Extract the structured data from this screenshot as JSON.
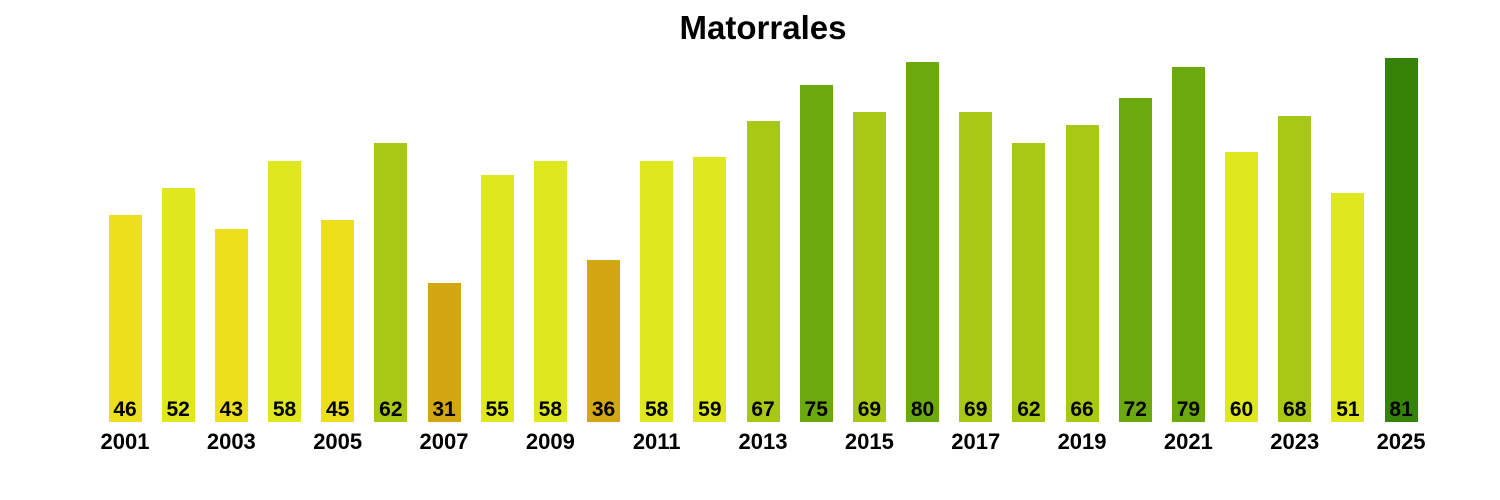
{
  "chart_data": {
    "type": "bar",
    "title": "Matorrales",
    "x": [
      2001,
      2002,
      2003,
      2004,
      2005,
      2006,
      2007,
      2008,
      2009,
      2010,
      2011,
      2012,
      2013,
      2014,
      2015,
      2016,
      2017,
      2018,
      2019,
      2020,
      2021,
      2022,
      2023,
      2024,
      2025
    ],
    "values": [
      46,
      52,
      43,
      58,
      45,
      62,
      31,
      55,
      58,
      36,
      58,
      59,
      67,
      75,
      69,
      80,
      69,
      62,
      66,
      72,
      79,
      60,
      68,
      51,
      81
    ],
    "bar_colors": [
      "#EDDF1C",
      "#DFE81E",
      "#EDDF1C",
      "#DFE81E",
      "#EDDF1C",
      "#A7C814",
      "#D2A713",
      "#DFE81E",
      "#DFE81E",
      "#D2A713",
      "#DFE81E",
      "#DFE81E",
      "#A7C814",
      "#6CA90F",
      "#A7C814",
      "#6CA90F",
      "#A7C814",
      "#A7C814",
      "#A7C814",
      "#6CA90F",
      "#6CA90F",
      "#DFE81E",
      "#A7C814",
      "#DFE81E",
      "#348307"
    ],
    "x_tick_labels": [
      "2001",
      "2003",
      "2005",
      "2007",
      "2009",
      "2011",
      "2013",
      "2015",
      "2017",
      "2019",
      "2021",
      "2023",
      "2025"
    ],
    "x_tick_every": 2,
    "value_labels_shown": true,
    "value_label_position": "inside-base",
    "xlabel": "",
    "ylabel": "",
    "ylim": [
      0,
      84
    ],
    "grid": false,
    "legend": null,
    "axes_visible": false,
    "background_color": "#FFFFFF",
    "text_color": "#000000",
    "color_bins": [
      {
        "range": "30-40",
        "color": "#D2A713"
      },
      {
        "range": "41-50",
        "color": "#EDDF1C"
      },
      {
        "range": "51-60",
        "color": "#DFE81E"
      },
      {
        "range": "61-70",
        "color": "#A7C814"
      },
      {
        "range": "71-80",
        "color": "#6CA90F"
      },
      {
        "range": "81+",
        "color": "#348307"
      }
    ]
  }
}
